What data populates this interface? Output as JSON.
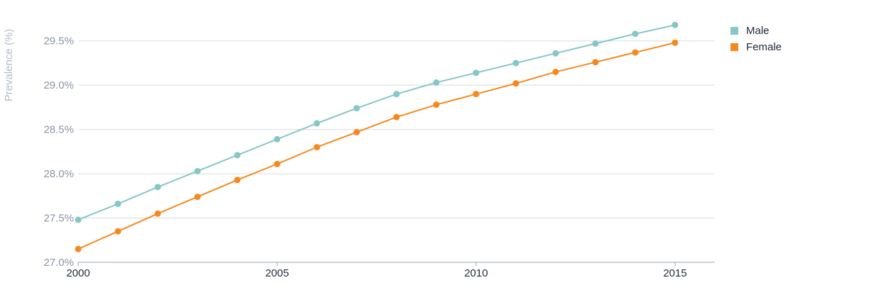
{
  "chart_data": {
    "type": "line",
    "title": "",
    "xlabel": "",
    "ylabel": "Prevalence (%)",
    "x": [
      2000,
      2001,
      2002,
      2003,
      2004,
      2005,
      2006,
      2007,
      2008,
      2009,
      2010,
      2011,
      2012,
      2013,
      2014,
      2015
    ],
    "xticks": [
      "2000",
      "2005",
      "2010",
      "2015"
    ],
    "xlim": [
      2000,
      2016
    ],
    "ylim": [
      27.0,
      29.85
    ],
    "yticks": [
      "27.0%",
      "27.5%",
      "28.0%",
      "28.5%",
      "29.0%",
      "29.5%"
    ],
    "ytick_values": [
      27.0,
      27.5,
      28.0,
      28.5,
      29.0,
      29.5
    ],
    "grid": true,
    "legend_position": "top-right",
    "series": [
      {
        "name": "Male",
        "color": "#86c6c6",
        "values": [
          27.48,
          27.66,
          27.85,
          28.03,
          28.21,
          28.39,
          28.57,
          28.74,
          28.9,
          29.03,
          29.14,
          29.25,
          29.36,
          29.47,
          29.58,
          29.68
        ]
      },
      {
        "name": "Female",
        "color": "#f5891f",
        "values": [
          27.15,
          27.35,
          27.55,
          27.74,
          27.93,
          28.11,
          28.3,
          28.47,
          28.64,
          28.78,
          28.9,
          29.02,
          29.15,
          29.26,
          29.37,
          29.48
        ]
      }
    ]
  }
}
